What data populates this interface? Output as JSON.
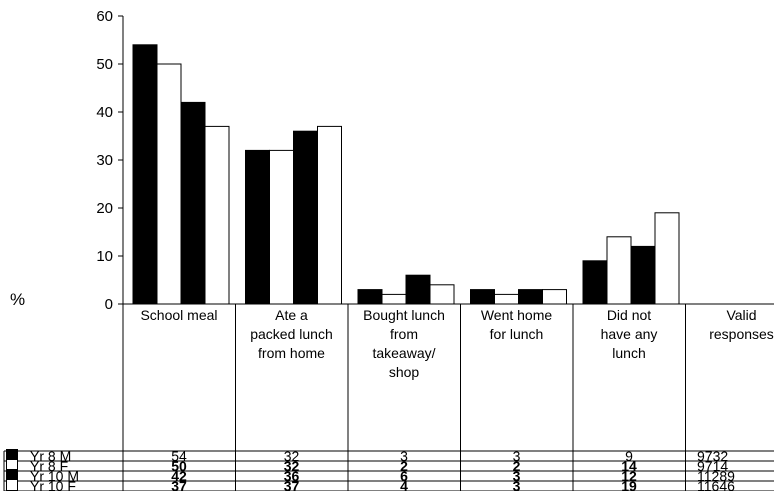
{
  "chart_data": {
    "type": "bar",
    "ylabel": "%",
    "ylim": [
      0,
      60
    ],
    "yticks": [
      "60",
      "50",
      "40",
      "30",
      "20",
      "10",
      "0"
    ],
    "categories": [
      [
        "School meal"
      ],
      [
        "Ate a",
        "packed lunch",
        "from home"
      ],
      [
        "Bought lunch",
        "from",
        "takeaway/",
        "shop"
      ],
      [
        "Went home",
        "for lunch"
      ],
      [
        "Did not",
        "have any",
        "lunch"
      ]
    ],
    "extra_column": [
      "Valid",
      "responses"
    ],
    "series": [
      {
        "name": "Yr 8 M",
        "fill": "#000000",
        "values": [
          54,
          32,
          3,
          3,
          9
        ],
        "labels": [
          "54",
          "32",
          "3",
          "3",
          "9"
        ],
        "valid": "9732"
      },
      {
        "name": "Yr 8 F",
        "fill": "#ffffff",
        "values": [
          50,
          32,
          2,
          2,
          14
        ],
        "labels": [
          "50",
          "32",
          "2",
          "2",
          "14"
        ],
        "valid": "9714"
      },
      {
        "name": "Yr 10 M",
        "fill": "#000000",
        "values": [
          42,
          36,
          6,
          3,
          12
        ],
        "labels": [
          "42",
          "36",
          "6",
          "3",
          "12"
        ],
        "valid": "11289"
      },
      {
        "name": "Yr 10 F",
        "fill": "#ffffff",
        "values": [
          37,
          37,
          4,
          3,
          19
        ],
        "labels": [
          "37",
          "37",
          "4",
          "3",
          "19"
        ],
        "valid": "11646"
      }
    ]
  }
}
